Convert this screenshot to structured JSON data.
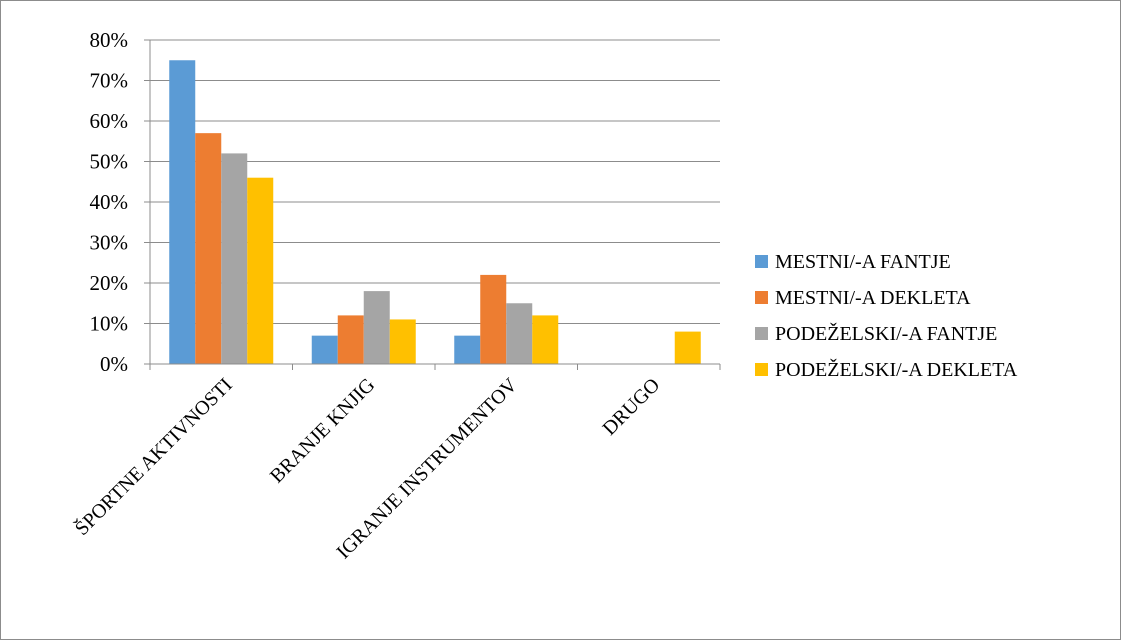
{
  "chart_data": {
    "type": "bar",
    "categories": [
      "ŠPORTNE AKTIVNOSTI",
      "BRANJE KNJIG",
      "IGRANJE INSTRUMENTOV",
      "DRUGO"
    ],
    "series": [
      {
        "name": "MESTNI/-A FANTJE",
        "color": "#5b9bd5",
        "values": [
          75,
          7,
          7,
          0
        ]
      },
      {
        "name": "MESTNI/-A DEKLETA",
        "color": "#ed7d31",
        "values": [
          57,
          12,
          22,
          0
        ]
      },
      {
        "name": "PODEŽELSKI/-A FANTJE",
        "color": "#a5a5a5",
        "values": [
          52,
          18,
          15,
          0
        ]
      },
      {
        "name": "PODEŽELSKI/-A DEKLETA",
        "color": "#ffc000",
        "values": [
          46,
          11,
          12,
          8
        ]
      }
    ],
    "y_ticks": [
      "0%",
      "10%",
      "20%",
      "30%",
      "40%",
      "50%",
      "60%",
      "70%",
      "80%"
    ],
    "ylim": [
      0,
      80
    ],
    "y_unit": "%",
    "grid": true,
    "legend_position": "right",
    "title": "",
    "xlabel": "",
    "ylabel": ""
  }
}
